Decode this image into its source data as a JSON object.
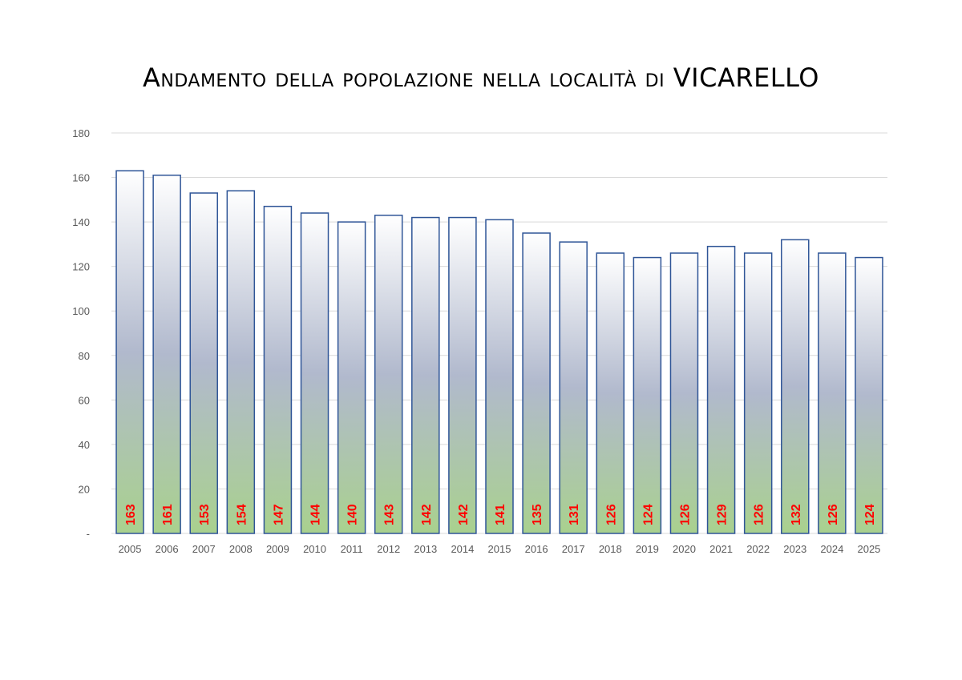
{
  "chart_data": {
    "type": "bar",
    "title": "Andamento della popolazione nella località di VICARELLO",
    "xlabel": "",
    "ylabel": "",
    "ylim": [
      0,
      180
    ],
    "yticks": [
      0,
      20,
      40,
      60,
      80,
      100,
      120,
      140,
      160,
      180
    ],
    "ytick_labels": [
      "-",
      "20",
      "40",
      "60",
      "80",
      "100",
      "120",
      "140",
      "160",
      "180"
    ],
    "grid": true,
    "categories": [
      "2005",
      "2006",
      "2007",
      "2008",
      "2009",
      "2010",
      "2011",
      "2012",
      "2013",
      "2014",
      "2015",
      "2016",
      "2017",
      "2018",
      "2019",
      "2020",
      "2021",
      "2022",
      "2023",
      "2024",
      "2025"
    ],
    "values": [
      163,
      161,
      153,
      154,
      147,
      144,
      140,
      143,
      142,
      142,
      141,
      135,
      131,
      126,
      124,
      126,
      129,
      126,
      132,
      126,
      124
    ],
    "colors": {
      "bar_top": "#ffffff",
      "bar_mid": "#b1b9cd",
      "bar_bottom": "#a9d18e",
      "bar_border": "#2f5597",
      "data_label": "#ff0000",
      "grid": "#d9d9d9",
      "tick_text": "#595959"
    }
  }
}
